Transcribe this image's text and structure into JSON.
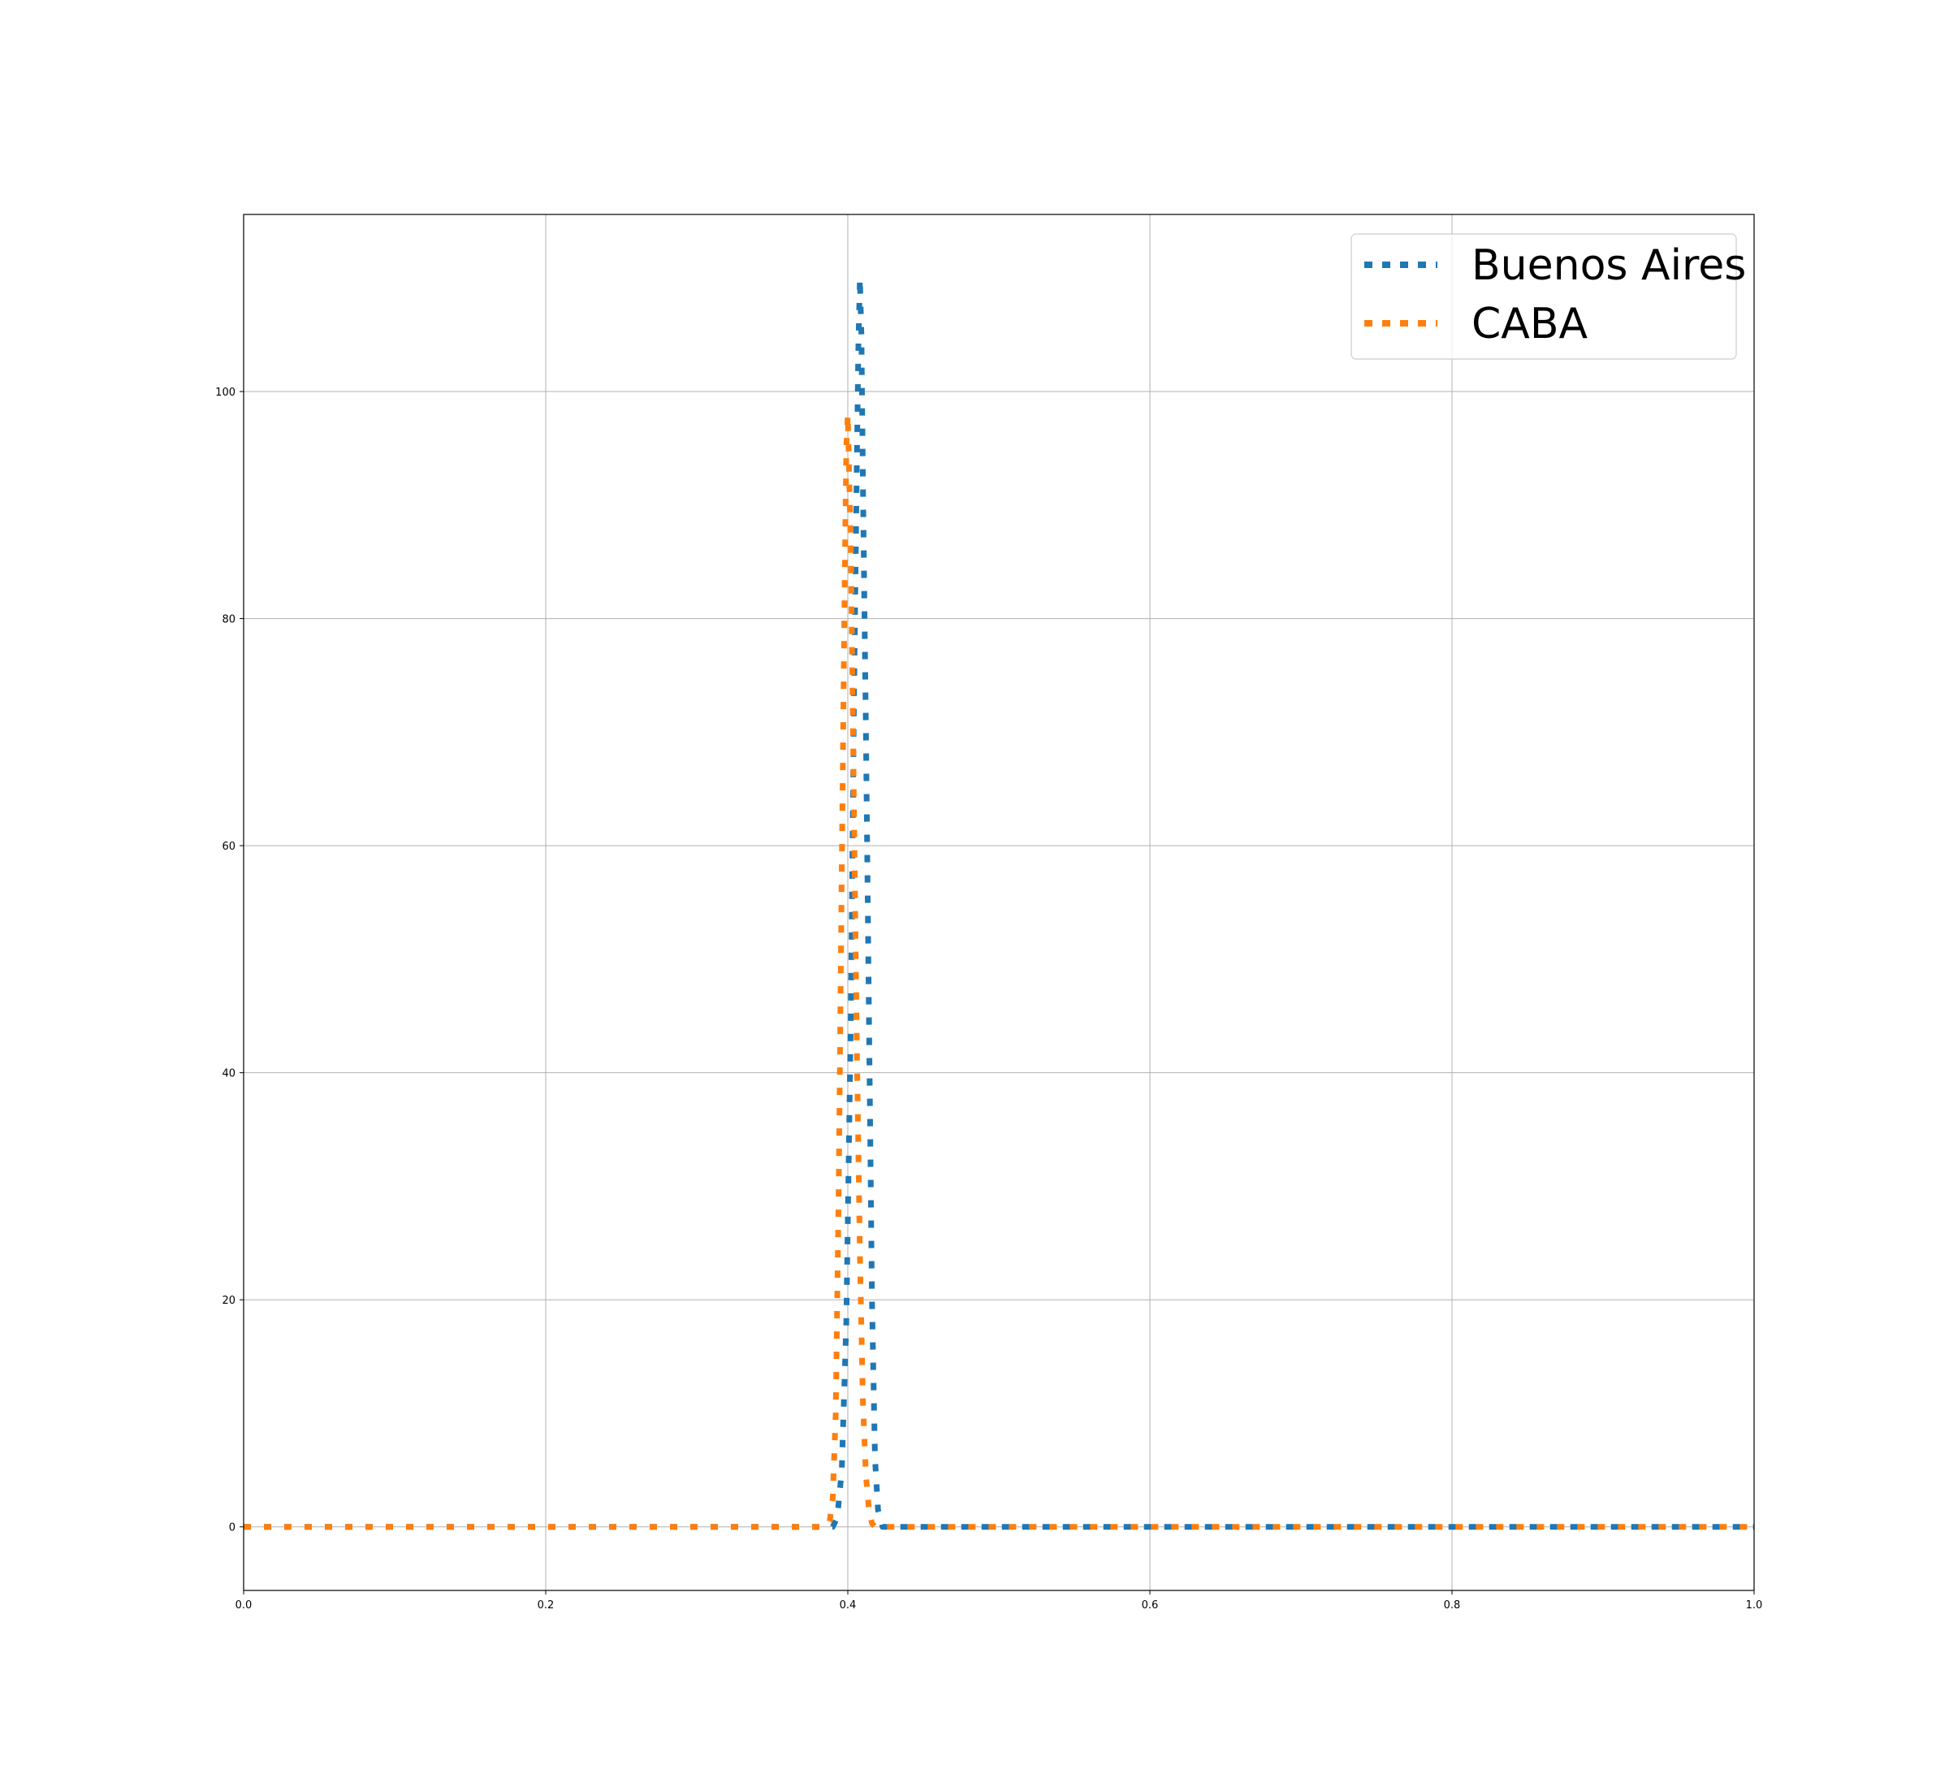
{
  "chart_data": {
    "type": "line",
    "title": "",
    "xlabel": "",
    "ylabel": "",
    "xlim": [
      0.0,
      1.0
    ],
    "ylim": [
      -5.6,
      115.6
    ],
    "grid": true,
    "legend_position": "top-right",
    "x_ticks": [
      "0.0",
      "0.2",
      "0.4",
      "0.6",
      "0.8",
      "1.0"
    ],
    "x_tick_values": [
      0.0,
      0.2,
      0.4,
      0.6,
      0.8,
      1.0
    ],
    "y_ticks": [
      "0",
      "20",
      "40",
      "60",
      "80",
      "100"
    ],
    "y_tick_values": [
      0,
      20,
      40,
      60,
      80,
      100
    ],
    "series": [
      {
        "name": "Buenos Aires",
        "color": "#1f77b4",
        "line_style": "dotted",
        "x": [
          0.0,
          0.39,
          0.393,
          0.396,
          0.399,
          0.402,
          0.404,
          0.406,
          0.407,
          0.408,
          0.409,
          0.41,
          0.412,
          0.414,
          0.416,
          0.418,
          0.42,
          0.423,
          0.43,
          1.0
        ],
        "y": [
          0,
          0,
          0.8,
          5,
          18,
          45,
          72,
          94,
          104,
          110,
          105,
          92,
          70,
          45,
          20,
          6,
          1.5,
          0,
          0,
          0
        ]
      },
      {
        "name": "CABA",
        "color": "#ff7f0e",
        "line_style": "dotted",
        "x": [
          0.0,
          0.385,
          0.388,
          0.39,
          0.392,
          0.394,
          0.396,
          0.398,
          0.399,
          0.4,
          0.402,
          0.404,
          0.406,
          0.408,
          0.41,
          0.412,
          0.414,
          0.416,
          0.418,
          0.42,
          1.0
        ],
        "y": [
          0,
          0,
          0.5,
          2.5,
          10,
          30,
          58,
          84,
          95,
          98,
          86,
          64,
          42,
          24,
          11,
          4.5,
          1.5,
          0.3,
          0,
          0,
          0
        ]
      }
    ]
  }
}
